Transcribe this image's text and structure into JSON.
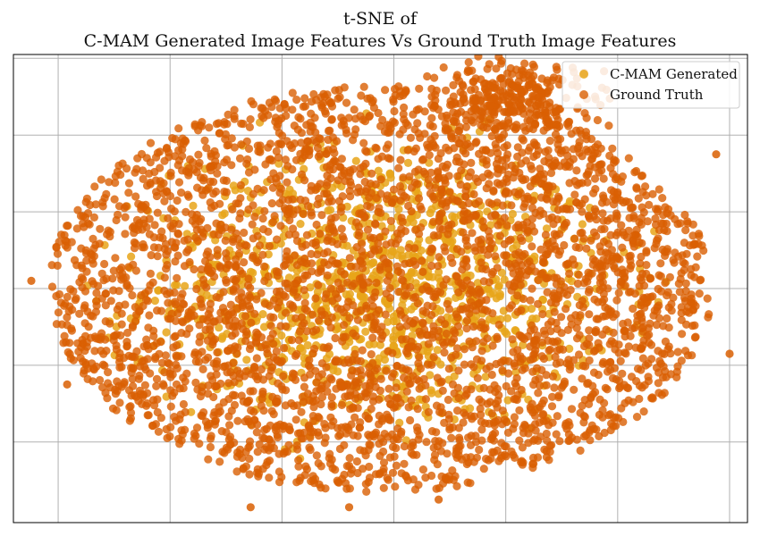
{
  "chart_data": {
    "type": "scatter",
    "title_line1": "t-SNE of",
    "title_line2": "C-MAM Generated Image Features Vs Ground Truth Image Features",
    "xlabel": "",
    "ylabel": "",
    "xlim": [
      -82,
      82
    ],
    "ylim": [
      -61,
      61
    ],
    "x_gridlines": [
      -72,
      -47,
      -22,
      3,
      28,
      53,
      78
    ],
    "y_gridlines": [
      -40,
      -20,
      0,
      20,
      40,
      60
    ],
    "tick_labels_shown": false,
    "grid": true,
    "legend_position": "top-right",
    "series": [
      {
        "name": "C-MAM Generated",
        "color": "#E8A419",
        "distribution": "dense elliptical cloud centred near (0, 0), spanning roughly x -65..65 and y -45..50"
      },
      {
        "name": "Ground Truth",
        "color": "#D95F02",
        "distribution": "dense elliptical cloud overlapping the C-MAM cloud, spanning roughly x -75..75 and y -55..57, with a bulge at top-right near (30, 50)"
      }
    ]
  }
}
